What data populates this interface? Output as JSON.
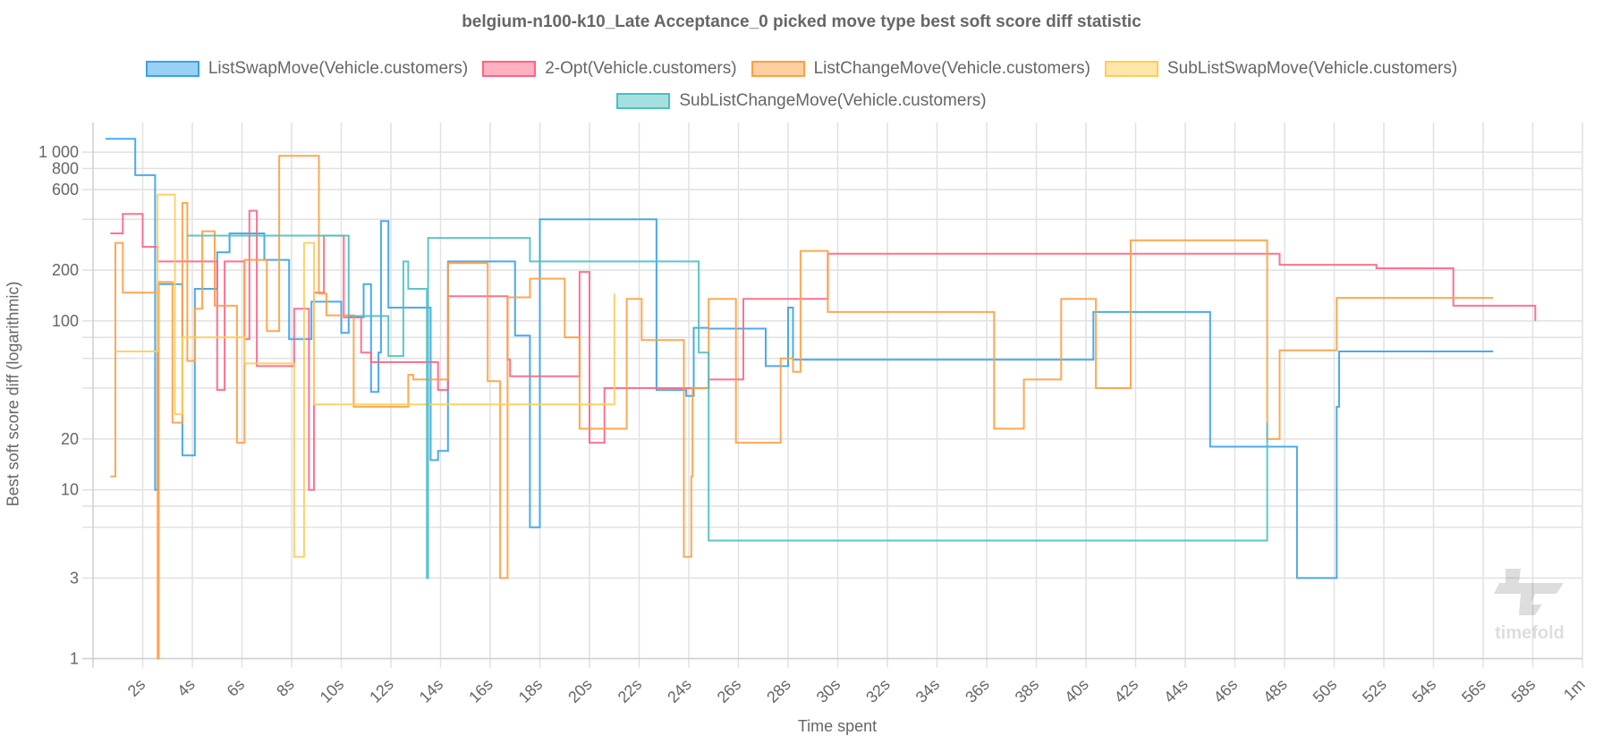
{
  "chart_data": {
    "type": "line",
    "step": true,
    "title": "belgium-n100-k10_Late Acceptance_0 picked move type best soft score diff statistic",
    "xlabel": "Time spent",
    "ylabel": "Best soft score diff (logarithmic)",
    "x_unit": "s",
    "xlim": [
      0,
      60
    ],
    "ylim": [
      1,
      1500
    ],
    "yscale": "log",
    "grid": true,
    "legend_position": "top",
    "x_ticks": [
      "2s",
      "4s",
      "6s",
      "8s",
      "10s",
      "12s",
      "14s",
      "16s",
      "18s",
      "20s",
      "22s",
      "24s",
      "26s",
      "28s",
      "30s",
      "32s",
      "34s",
      "36s",
      "38s",
      "40s",
      "42s",
      "44s",
      "46s",
      "48s",
      "50s",
      "52s",
      "54s",
      "56s",
      "58s",
      "1m"
    ],
    "y_tick_labels": [
      {
        "value": 1,
        "label": "1"
      },
      {
        "value": 3,
        "label": "3"
      },
      {
        "value": 10,
        "label": "10"
      },
      {
        "value": 20,
        "label": "20"
      },
      {
        "value": 100,
        "label": "100"
      },
      {
        "value": 200,
        "label": "200"
      },
      {
        "value": 600,
        "label": "600"
      },
      {
        "value": 800,
        "label": "800"
      },
      {
        "value": 1000,
        "label": "1 000"
      }
    ],
    "y_grid_values": [
      1,
      3,
      6,
      8,
      10,
      20,
      40,
      60,
      80,
      100,
      200,
      400,
      600,
      800,
      1000
    ],
    "series": [
      {
        "name": "ListSwapMove(Vehicle.customers)",
        "color": "#36a2eb",
        "fill": "#9ad0f5",
        "points": [
          [
            0.5,
            1200
          ],
          [
            1.7,
            730
          ],
          [
            2.5,
            10
          ],
          [
            2.6,
            165
          ],
          [
            3.6,
            16
          ],
          [
            4.1,
            155
          ],
          [
            5.0,
            255
          ],
          [
            5.5,
            330
          ],
          [
            6.9,
            230
          ],
          [
            7.9,
            78
          ],
          [
            8.8,
            130
          ],
          [
            10.0,
            85
          ],
          [
            10.3,
            105
          ],
          [
            10.9,
            165
          ],
          [
            11.2,
            38
          ],
          [
            11.5,
            65
          ],
          [
            11.6,
            390
          ],
          [
            11.9,
            120
          ],
          [
            13.6,
            15
          ],
          [
            13.9,
            17
          ],
          [
            14.3,
            225
          ],
          [
            17.0,
            82
          ],
          [
            17.6,
            6
          ],
          [
            18.0,
            400
          ],
          [
            22.7,
            39
          ],
          [
            23.9,
            36
          ],
          [
            24.2,
            91
          ],
          [
            24.8,
            90
          ],
          [
            27.1,
            54
          ],
          [
            28.0,
            120
          ],
          [
            28.2,
            59
          ],
          [
            40.3,
            113
          ],
          [
            45.0,
            18
          ],
          [
            48.5,
            3
          ],
          [
            50.1,
            31
          ],
          [
            50.2,
            66
          ],
          [
            56.4,
            66
          ]
        ]
      },
      {
        "name": "2-Opt(Vehicle.customers)",
        "color": "#ff6384",
        "fill": "#ffb1c1",
        "points": [
          [
            0.7,
            330
          ],
          [
            1.2,
            430
          ],
          [
            2.0,
            275
          ],
          [
            2.6,
            225
          ],
          [
            5.0,
            39
          ],
          [
            5.3,
            225
          ],
          [
            6.1,
            78
          ],
          [
            6.3,
            450
          ],
          [
            6.6,
            54
          ],
          [
            8.1,
            118
          ],
          [
            8.7,
            10
          ],
          [
            8.9,
            147
          ],
          [
            9.3,
            320
          ],
          [
            10.1,
            105
          ],
          [
            10.8,
            65
          ],
          [
            11.2,
            57
          ],
          [
            13.9,
            39
          ],
          [
            14.3,
            140
          ],
          [
            16.7,
            59
          ],
          [
            16.8,
            47
          ],
          [
            19.6,
            195
          ],
          [
            20.0,
            19
          ],
          [
            20.6,
            40
          ],
          [
            24.8,
            45
          ],
          [
            26.2,
            135
          ],
          [
            29.6,
            250
          ],
          [
            47.8,
            215
          ],
          [
            51.7,
            205
          ],
          [
            54.8,
            123
          ],
          [
            58.1,
            100
          ]
        ]
      },
      {
        "name": "ListChangeMove(Vehicle.customers)",
        "color": "#ff9f40",
        "fill": "#ffcf9f",
        "points": [
          [
            0.7,
            12
          ],
          [
            0.9,
            290
          ],
          [
            1.2,
            147
          ],
          [
            2.6,
            1
          ],
          [
            2.65,
            170
          ],
          [
            3.2,
            25
          ],
          [
            3.6,
            500
          ],
          [
            3.8,
            58
          ],
          [
            4.1,
            118
          ],
          [
            4.4,
            340
          ],
          [
            4.9,
            123
          ],
          [
            5.8,
            19
          ],
          [
            6.1,
            230
          ],
          [
            7.0,
            87
          ],
          [
            7.5,
            950
          ],
          [
            9.1,
            145
          ],
          [
            9.4,
            108
          ],
          [
            10.5,
            31
          ],
          [
            12.7,
            48
          ],
          [
            12.9,
            45
          ],
          [
            14.3,
            220
          ],
          [
            15.9,
            44
          ],
          [
            16.4,
            3
          ],
          [
            16.7,
            138
          ],
          [
            17.6,
            178
          ],
          [
            19.0,
            80
          ],
          [
            19.6,
            23
          ],
          [
            21.5,
            135
          ],
          [
            22.1,
            77
          ],
          [
            23.8,
            4
          ],
          [
            24.1,
            12
          ],
          [
            24.15,
            40
          ],
          [
            24.8,
            135
          ],
          [
            25.9,
            19
          ],
          [
            27.7,
            60
          ],
          [
            28.2,
            50
          ],
          [
            28.5,
            260
          ],
          [
            29.6,
            113
          ],
          [
            36.3,
            23
          ],
          [
            37.5,
            45
          ],
          [
            39.0,
            135
          ],
          [
            40.4,
            40
          ],
          [
            41.8,
            300
          ],
          [
            47.3,
            20
          ],
          [
            47.8,
            67
          ],
          [
            50.1,
            137
          ],
          [
            56.4,
            137
          ]
        ]
      },
      {
        "name": "SubListSwapMove(Vehicle.customers)",
        "color": "#ffcd56",
        "fill": "#ffe6aa",
        "points": [
          [
            0.9,
            66
          ],
          [
            2.6,
            560
          ],
          [
            3.3,
            28
          ],
          [
            3.6,
            80
          ],
          [
            6.1,
            56
          ],
          [
            8.1,
            4
          ],
          [
            8.5,
            290
          ],
          [
            8.9,
            32
          ],
          [
            21.0,
            32
          ],
          [
            21.0,
            145
          ]
        ]
      },
      {
        "name": "SubListChangeMove(Vehicle.customers)",
        "color": "#4bc0c0",
        "fill": "#a5dfdf",
        "points": [
          [
            3.8,
            320
          ],
          [
            10.3,
            107
          ],
          [
            11.9,
            62
          ],
          [
            12.5,
            225
          ],
          [
            12.7,
            155
          ],
          [
            13.45,
            3
          ],
          [
            13.5,
            310
          ],
          [
            17.6,
            225
          ],
          [
            24.4,
            65
          ],
          [
            24.8,
            5
          ],
          [
            47.3,
            5
          ],
          [
            47.3,
            25
          ]
        ]
      }
    ],
    "watermark": "timefold"
  }
}
